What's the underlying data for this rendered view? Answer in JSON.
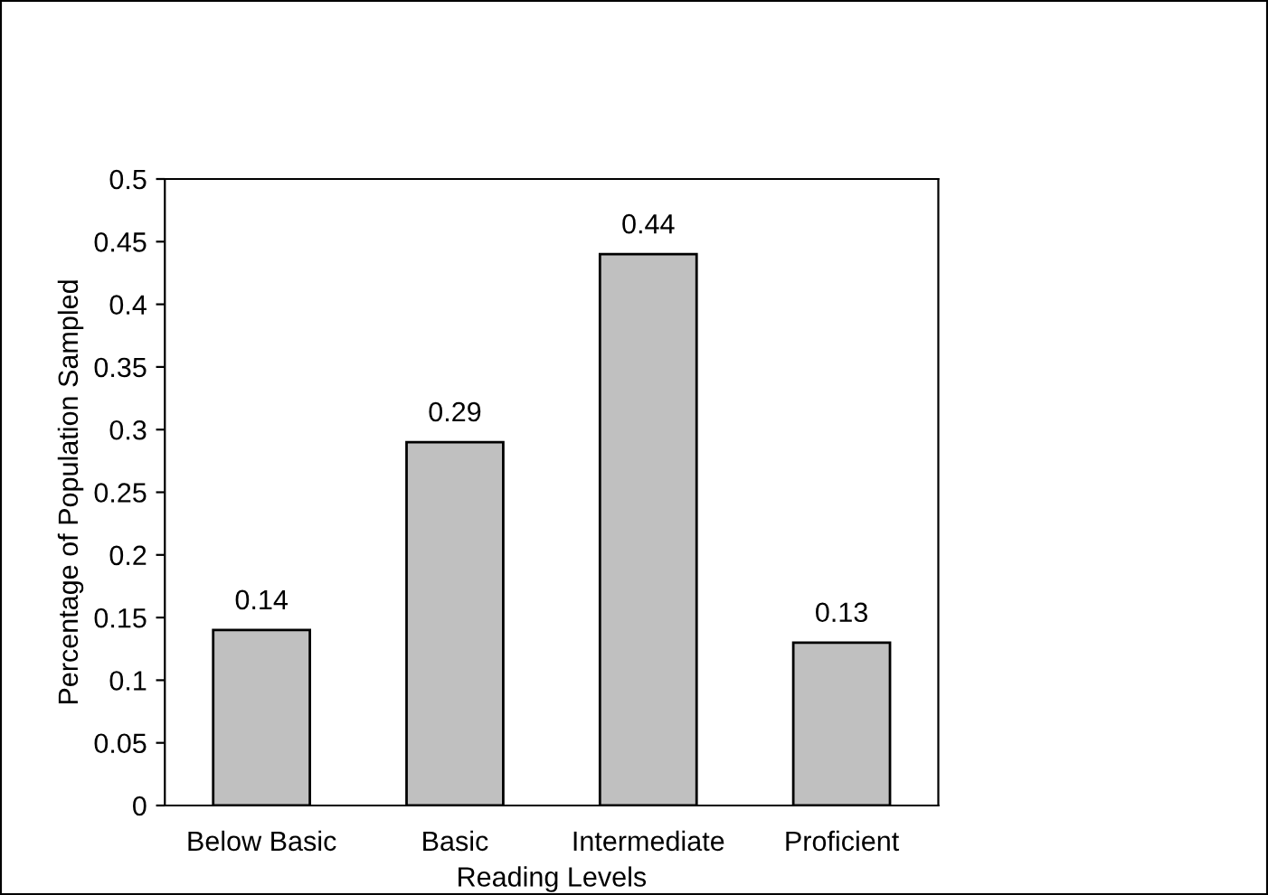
{
  "chart_data": {
    "type": "bar",
    "xlabel": "Reading Levels",
    "ylabel": "Percentage of Population Sampled",
    "categories": [
      "Below Basic",
      "Basic",
      "Intermediate",
      "Proficient"
    ],
    "values": [
      0.14,
      0.29,
      0.44,
      0.13
    ],
    "color": "#c0c0c0",
    "ylim": [
      0,
      0.5
    ],
    "yticks": [
      0,
      0.05,
      0.1,
      0.15,
      0.2,
      0.25,
      0.3,
      0.35,
      0.4,
      0.45,
      0.5
    ],
    "data_labels": true,
    "grid": false
  }
}
